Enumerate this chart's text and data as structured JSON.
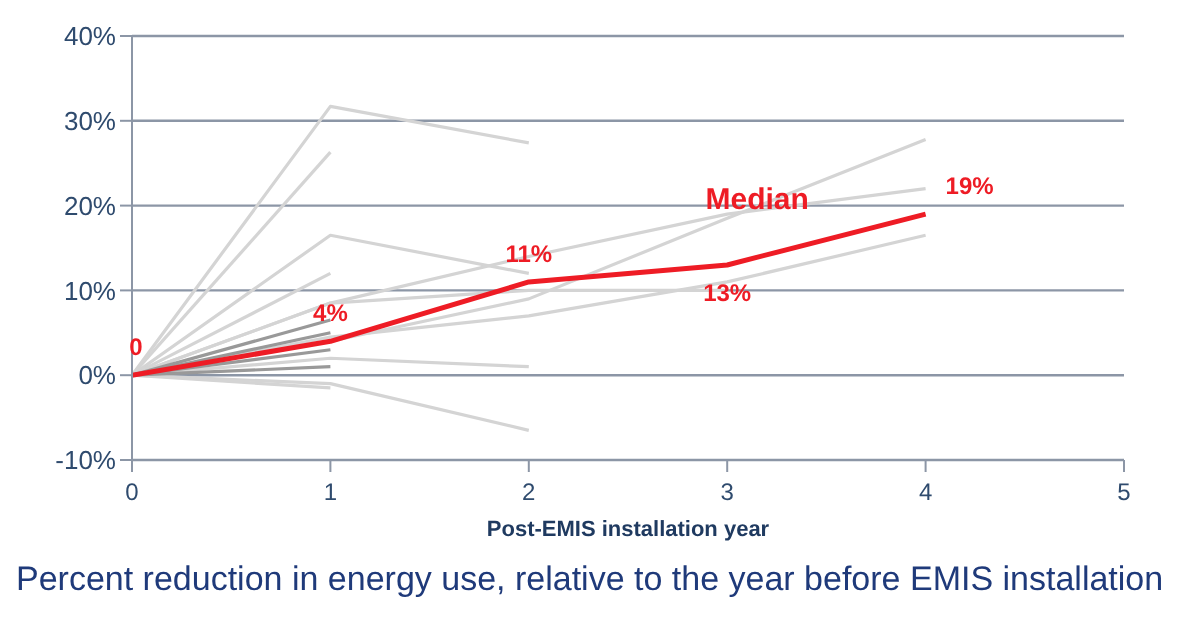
{
  "chart_data": {
    "type": "line",
    "title": "Percent reduction in energy use, relative to the year before EMIS installation",
    "xlabel": "Post-EMIS installation year",
    "xlim": [
      0,
      5
    ],
    "xticks": [
      0,
      1,
      2,
      3,
      4,
      5
    ],
    "ylim": [
      -10,
      40
    ],
    "yticks": [
      {
        "value": -10,
        "label": "-10%"
      },
      {
        "value": 0,
        "label": "0%"
      },
      {
        "value": 10,
        "label": "10%"
      },
      {
        "value": 20,
        "label": "20%"
      },
      {
        "value": 30,
        "label": "30%"
      },
      {
        "value": 40,
        "label": "40%"
      }
    ],
    "grid": "y",
    "legend": false,
    "marker": "none",
    "line_style": "solid",
    "series": [
      {
        "color": "#d4d4d4",
        "x": [
          0,
          1,
          2
        ],
        "values": [
          0,
          31.7,
          27.4
        ]
      },
      {
        "color": "#d4d4d4",
        "x": [
          0,
          1
        ],
        "values": [
          0,
          26.3
        ]
      },
      {
        "color": "#d4d4d4",
        "x": [
          0,
          1,
          2
        ],
        "values": [
          0,
          16.5,
          12
        ]
      },
      {
        "color": "#d4d4d4",
        "x": [
          0,
          1
        ],
        "values": [
          0,
          12
        ]
      },
      {
        "color": "#d4d4d4",
        "x": [
          0,
          1,
          2,
          3,
          4
        ],
        "values": [
          0,
          8.5,
          14,
          19,
          22
        ]
      },
      {
        "color": "#d4d4d4",
        "x": [
          0,
          1,
          2,
          3,
          4
        ],
        "values": [
          0,
          4,
          9,
          18.5,
          27.8
        ]
      },
      {
        "color": "#d4d4d4",
        "x": [
          0,
          1,
          2,
          3,
          4
        ],
        "values": [
          0,
          4.5,
          7,
          11,
          16.5
        ]
      },
      {
        "color": "#d4d4d4",
        "x": [
          0,
          1,
          2,
          3
        ],
        "values": [
          0,
          8.5,
          10,
          10
        ]
      },
      {
        "color": "#d4d4d4",
        "x": [
          0,
          1,
          2
        ],
        "values": [
          0,
          2,
          1
        ]
      },
      {
        "color": "#d4d4d4",
        "x": [
          0,
          1,
          2
        ],
        "values": [
          0,
          -1,
          -6.5
        ]
      },
      {
        "color": "#d4d4d4",
        "x": [
          0,
          1
        ],
        "values": [
          0,
          -1.5
        ]
      },
      {
        "color": "#999999",
        "x": [
          0,
          1
        ],
        "values": [
          0,
          6.5
        ]
      },
      {
        "color": "#999999",
        "x": [
          0,
          1
        ],
        "values": [
          0,
          5
        ]
      },
      {
        "color": "#999999",
        "x": [
          0,
          1
        ],
        "values": [
          0,
          3
        ]
      },
      {
        "color": "#999999",
        "x": [
          0,
          1
        ],
        "values": [
          0,
          1
        ]
      },
      {
        "name": "Median",
        "color": "#ee1c25",
        "x": [
          0,
          1,
          2,
          3,
          4
        ],
        "values": [
          0,
          4,
          11,
          13,
          19
        ],
        "value_labels": [
          "0",
          "4%",
          "11%",
          "13%",
          "19%"
        ]
      }
    ]
  }
}
